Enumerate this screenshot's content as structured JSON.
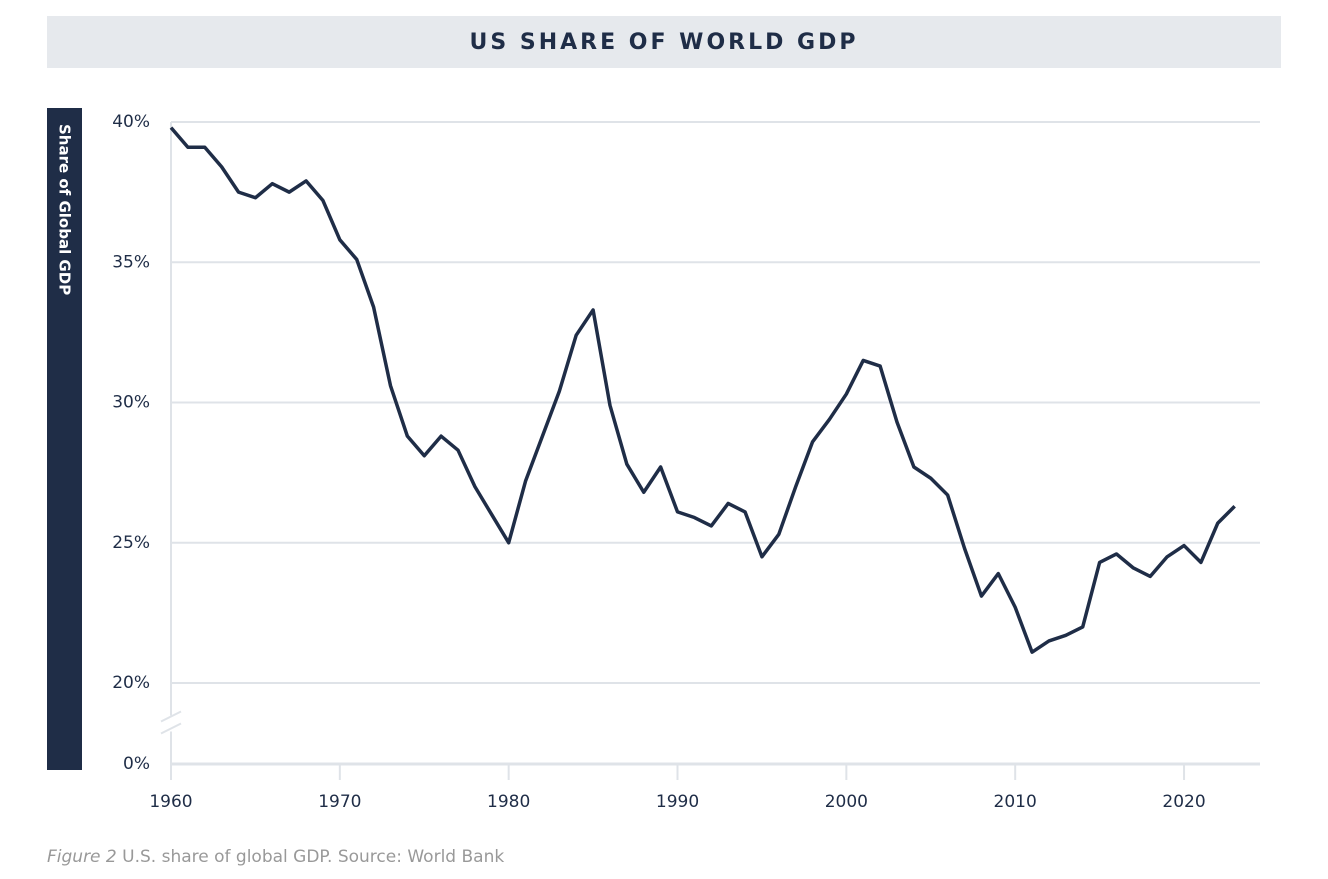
{
  "chart_data": {
    "type": "line",
    "title": "US SHARE OF WORLD GDP",
    "ylabel": "Share of Global GDP",
    "caption_label": "Figure 2",
    "caption": "U.S. share of global GDP.  Source: World Bank",
    "x": [
      1960,
      1961,
      1962,
      1963,
      1964,
      1965,
      1966,
      1967,
      1968,
      1969,
      1970,
      1971,
      1972,
      1973,
      1974,
      1975,
      1976,
      1977,
      1978,
      1979,
      1980,
      1981,
      1982,
      1983,
      1984,
      1985,
      1986,
      1987,
      1988,
      1989,
      1990,
      1991,
      1992,
      1993,
      1994,
      1995,
      1996,
      1997,
      1998,
      1999,
      2000,
      2001,
      2002,
      2003,
      2004,
      2005,
      2006,
      2007,
      2008,
      2009,
      2010,
      2011,
      2012,
      2013,
      2014,
      2015,
      2016,
      2017,
      2018,
      2019,
      2020,
      2021,
      2022,
      2023
    ],
    "series": [
      {
        "name": "US share",
        "color": "#1f2d47",
        "values": [
          39.8,
          39.1,
          39.1,
          38.4,
          37.5,
          37.3,
          37.8,
          37.5,
          37.9,
          37.2,
          35.8,
          35.1,
          33.4,
          30.6,
          28.8,
          28.1,
          28.8,
          28.3,
          27.0,
          26.0,
          25.0,
          27.2,
          28.8,
          30.4,
          32.4,
          33.3,
          29.9,
          27.8,
          26.8,
          27.7,
          26.1,
          25.9,
          25.6,
          26.4,
          26.1,
          24.5,
          25.3,
          27.0,
          28.6,
          29.4,
          30.3,
          31.5,
          31.3,
          29.3,
          27.7,
          27.3,
          26.7,
          24.8,
          23.1,
          23.9,
          22.7,
          21.1,
          21.5,
          21.7,
          22.0,
          24.3,
          24.6,
          24.1,
          23.8,
          24.5,
          24.9,
          24.3,
          25.7,
          26.3
        ]
      }
    ],
    "xlim": [
      1960,
      2024.5
    ],
    "xticks": [
      1960,
      1970,
      1980,
      1990,
      2000,
      2010,
      2020
    ],
    "ylim": [
      0,
      40
    ],
    "axis_break": [
      0,
      20
    ],
    "yticks": [
      {
        "value": 0,
        "label": "0%"
      },
      {
        "value": 20,
        "label": "20%"
      },
      {
        "value": 25,
        "label": "25%"
      },
      {
        "value": 30,
        "label": "30%"
      },
      {
        "value": 35,
        "label": "35%"
      },
      {
        "value": 40,
        "label": "40%"
      }
    ],
    "grid": true
  }
}
